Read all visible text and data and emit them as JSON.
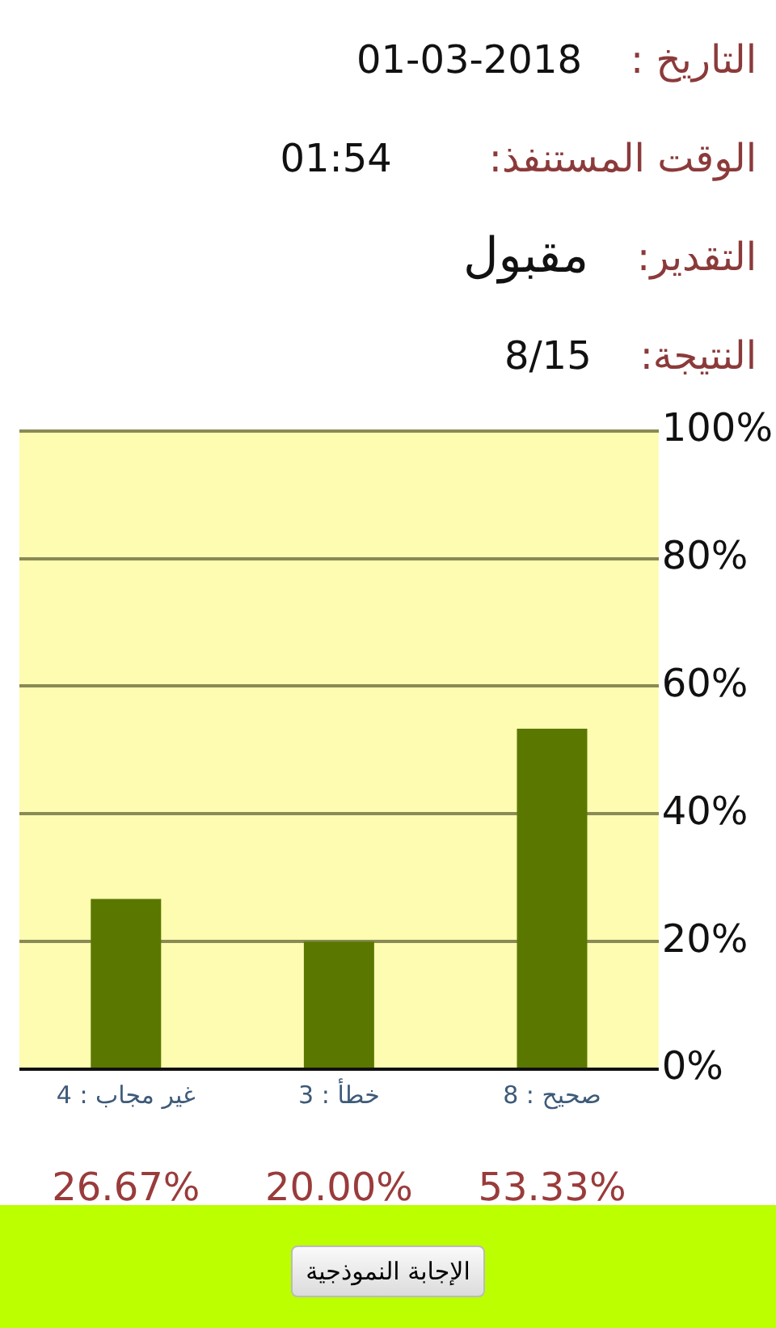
{
  "chart_data": {
    "type": "bar",
    "categories": [
      "غير مجاب : 4",
      "خطأ : 3",
      "صحيح : 8"
    ],
    "values": [
      26.67,
      20.0,
      53.33
    ],
    "color": "#5a7800",
    "value_labels": [
      "26.67%",
      "20.00%",
      "53.33%"
    ],
    "ylim": [
      0,
      100
    ],
    "yticks": [
      {
        "value": 0,
        "label": "0%"
      },
      {
        "value": 20,
        "label": "20%"
      },
      {
        "value": 40,
        "label": "40%"
      },
      {
        "value": 60,
        "label": "60%"
      },
      {
        "value": 80,
        "label": "80%"
      },
      {
        "value": 100,
        "label": "100%"
      }
    ],
    "grid": "y",
    "annotations": [
      "التاريخ :",
      "01-03-2018",
      "الوقت المستنفذ:",
      "01:54",
      "التقدير:",
      "مقبول",
      "النتيجة:",
      "8/15",
      "الإجابة النموذجية"
    ]
  }
}
